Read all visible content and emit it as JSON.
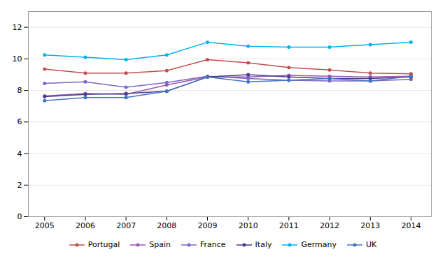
{
  "chart_data": {
    "type": "line",
    "x": [
      2005,
      2006,
      2007,
      2008,
      2009,
      2010,
      2011,
      2012,
      2013,
      2014
    ],
    "series": [
      {
        "name": "Portugal",
        "color": "#c0504d",
        "values": [
          9.35,
          9.1,
          9.1,
          9.25,
          9.95,
          9.75,
          9.45,
          9.3,
          9.1,
          9.05
        ]
      },
      {
        "name": "Spain",
        "color": "#9b59b6",
        "values": [
          7.65,
          7.8,
          7.75,
          8.35,
          8.85,
          8.85,
          8.95,
          8.9,
          8.85,
          8.9
        ]
      },
      {
        "name": "France",
        "color": "#7b68c8",
        "values": [
          8.45,
          8.55,
          8.2,
          8.5,
          8.9,
          8.75,
          8.65,
          8.6,
          8.6,
          8.7
        ]
      },
      {
        "name": "Italy",
        "color": "#483d8b",
        "values": [
          7.6,
          7.75,
          7.8,
          7.95,
          8.85,
          9.0,
          8.85,
          8.75,
          8.75,
          8.85
        ]
      },
      {
        "name": "Germany",
        "color": "#00b0f0",
        "values": [
          10.25,
          10.1,
          9.95,
          10.25,
          11.05,
          10.8,
          10.75,
          10.75,
          10.9,
          11.05
        ]
      },
      {
        "name": "UK",
        "color": "#4472c4",
        "values": [
          7.35,
          7.55,
          7.55,
          7.95,
          8.85,
          8.55,
          8.65,
          8.75,
          8.6,
          8.9
        ]
      }
    ],
    "xlim": [
      2004.6,
      2014.5
    ],
    "xticks": [
      2005,
      2006,
      2007,
      2008,
      2009,
      2010,
      2011,
      2012,
      2013,
      2014
    ],
    "ylim": [
      0,
      13
    ],
    "yticks": [
      0,
      2,
      4,
      6,
      8,
      10,
      12
    ],
    "grid": true,
    "marker": "circle",
    "legend": "bottom"
  }
}
